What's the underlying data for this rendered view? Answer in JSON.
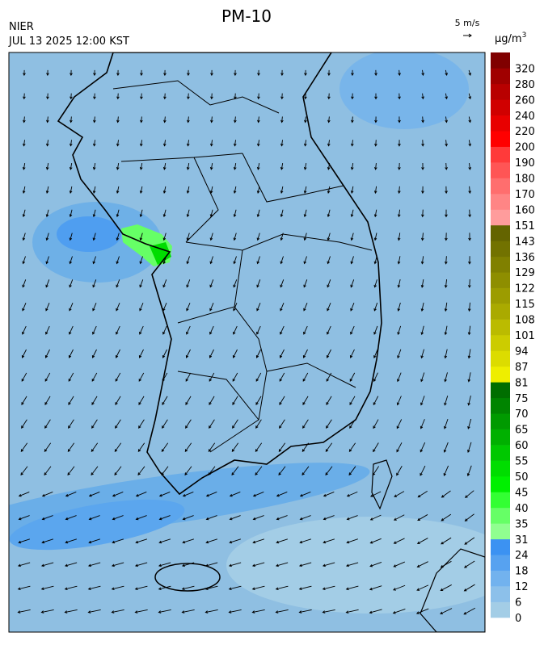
{
  "header": {
    "title": "PM-10",
    "agency": "NIER",
    "datetime": "JUL 13 2025 12:00 KST",
    "wind_scale": "5 m/s"
  },
  "colorbar": {
    "unit": "µg/m",
    "unit_sup": "3",
    "labels": [
      0,
      6,
      12,
      18,
      24,
      31,
      35,
      40,
      45,
      50,
      55,
      60,
      65,
      70,
      75,
      81,
      87,
      94,
      101,
      108,
      115,
      122,
      129,
      136,
      143,
      151,
      160,
      170,
      180,
      190,
      200,
      220,
      240,
      260,
      280,
      320
    ],
    "colors": [
      "#a3cde6",
      "#8cc0ea",
      "#72b2ee",
      "#57a2f0",
      "#3c92f2",
      "#90ff90",
      "#66ff66",
      "#33ff33",
      "#00f000",
      "#00dd00",
      "#00c800",
      "#00b000",
      "#009a00",
      "#008400",
      "#006e00",
      "#eeee00",
      "#dcdc00",
      "#cccc00",
      "#bbbb00",
      "#aaaa00",
      "#9c9c00",
      "#8e8e00",
      "#808000",
      "#727200",
      "#646400",
      "#ff9c9c",
      "#ff8585",
      "#ff6e6e",
      "#ff5555",
      "#ff3a3a",
      "#ff0000",
      "#e80000",
      "#d00000",
      "#b80000",
      "#a00000",
      "#800000"
    ]
  }
}
